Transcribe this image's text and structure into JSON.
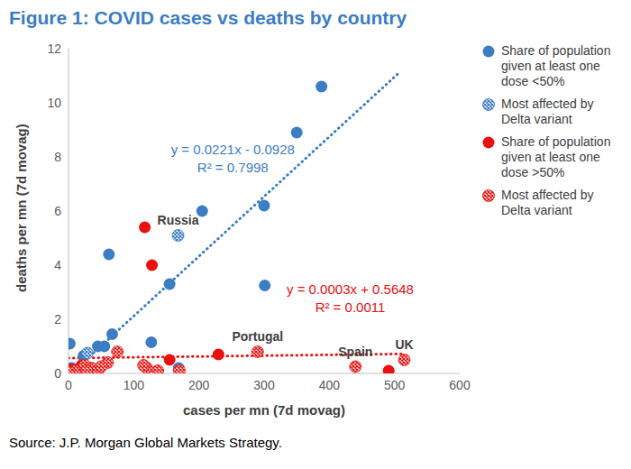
{
  "chart_data": {
    "type": "scatter",
    "title": "Figure 1: COVID cases vs deaths by country",
    "source": "Source: J.P. Morgan Global Markets Strategy.",
    "x_label": "cases per mn (7d movag)",
    "y_label": "deaths per mn (7d movag)",
    "xlim": [
      0,
      600
    ],
    "xticks": [
      0,
      100,
      200,
      300,
      400,
      500,
      600
    ],
    "ylim": [
      0,
      12
    ],
    "yticks": [
      0,
      2,
      4,
      6,
      8,
      10,
      12
    ],
    "grid": false,
    "legend": "right",
    "series": [
      {
        "name": "Share of population given at least one dose <50%",
        "color": "#3c7dc4",
        "marker": "circle",
        "x": [
          388,
          350,
          300,
          205,
          301,
          155,
          62,
          67,
          127,
          55,
          45,
          2,
          23,
          169,
          5,
          2
        ],
        "values": [
          10.6,
          8.9,
          6.2,
          6.0,
          3.25,
          3.3,
          4.4,
          1.45,
          1.15,
          1.0,
          1.0,
          1.1,
          0.65,
          0.2,
          0.2,
          0.1
        ]
      },
      {
        "name": "Most affected by Delta variant",
        "color": "#3c7dc4",
        "marker": "hatched",
        "x": [
          168,
          29
        ],
        "values": [
          5.1,
          0.75
        ]
      },
      {
        "name": "Share of population given at least one dose >50%",
        "color": "#e8110f",
        "marker": "circle",
        "x": [
          117,
          128,
          230,
          155,
          491,
          20,
          5
        ],
        "values": [
          5.4,
          4.0,
          0.7,
          0.5,
          0.1,
          0.3,
          0.15
        ]
      },
      {
        "name": "Most affected by Delta variant",
        "color": "#e8110f",
        "marker": "hatched",
        "x": [
          290,
          440,
          515,
          75,
          60,
          35,
          45,
          120,
          137,
          170,
          115,
          10,
          25,
          0,
          28,
          50
        ],
        "values": [
          0.8,
          0.25,
          0.5,
          0.8,
          0.4,
          0.2,
          0.1,
          0.2,
          0.1,
          0.1,
          0.3,
          0.1,
          0.3,
          0.05,
          0.1,
          0.25
        ]
      }
    ],
    "trendlines": [
      {
        "label": "y = 0.0221x - 0.0928",
        "r2_label": "R² = 0.7998",
        "slope": 0.0221,
        "intercept": -0.0928,
        "x_range": [
          5,
          505
        ],
        "color": "#3c7dc4",
        "line_style": "dotted"
      },
      {
        "label": "y = 0.0003x + 0.5648",
        "r2_label": "R² = 0.0011",
        "slope": 0.0003,
        "intercept": 0.5648,
        "x_range": [
          0,
          515
        ],
        "color": "#e8110f",
        "line_style": "dotted"
      }
    ],
    "annotations": [
      {
        "text": "Russia",
        "x": 168,
        "y": 5.1
      },
      {
        "text": "Portugal",
        "x": 290,
        "y": 0.8
      },
      {
        "text": "Spain",
        "x": 440,
        "y": 0.25
      },
      {
        "text": "UK",
        "x": 515,
        "y": 0.5
      }
    ]
  }
}
